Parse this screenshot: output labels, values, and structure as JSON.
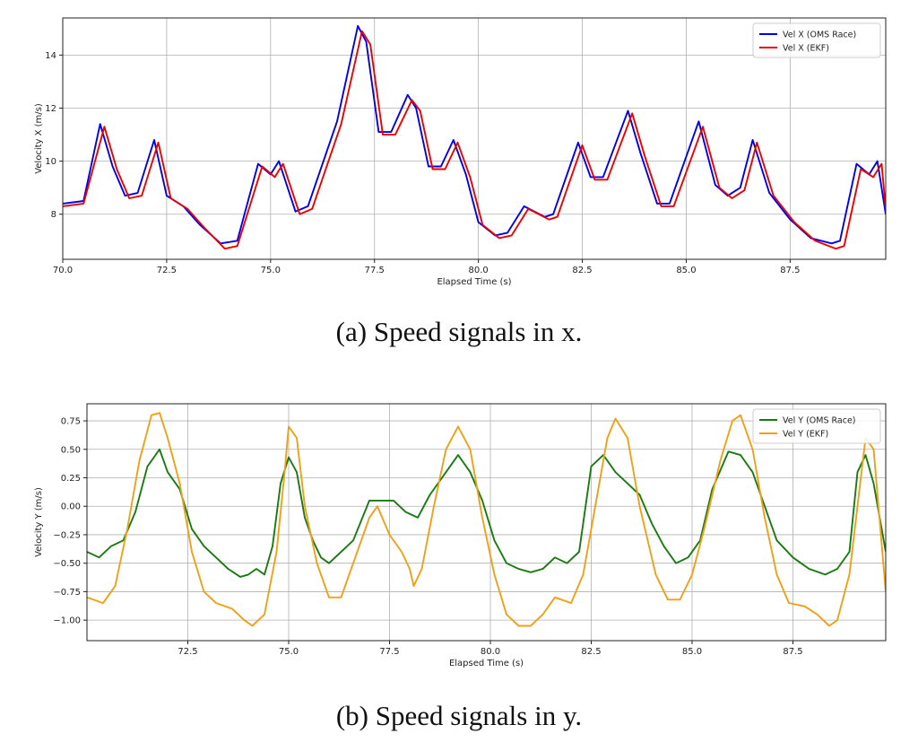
{
  "captions": {
    "a": "(a) Speed signals in x.",
    "b": "(b) Speed signals in y."
  },
  "chart_data": [
    {
      "type": "line",
      "xlabel": "Elapsed Time (s)",
      "ylabel": "Velocity X (m/s)",
      "xlim": [
        70.0,
        89.8
      ],
      "ylim": [
        6.3,
        15.4
      ],
      "xticks": [
        70.0,
        72.5,
        75.0,
        77.5,
        80.0,
        82.5,
        85.0,
        87.5
      ],
      "xtick_labels": [
        "70.0",
        "72.5",
        "75.0",
        "77.5",
        "80.0",
        "82.5",
        "85.0",
        "87.5"
      ],
      "yticks": [
        8,
        10,
        12,
        14
      ],
      "ytick_labels": [
        "8",
        "10",
        "12",
        "14"
      ],
      "grid": true,
      "legend_position": "top-right",
      "series": [
        {
          "name": "Vel X (OMS Race)",
          "color": "#0000ee",
          "points": [
            [
              70.0,
              8.4
            ],
            [
              70.5,
              8.5
            ],
            [
              70.9,
              11.4
            ],
            [
              71.2,
              9.8
            ],
            [
              71.5,
              8.7
            ],
            [
              71.8,
              8.8
            ],
            [
              72.2,
              10.8
            ],
            [
              72.5,
              8.7
            ],
            [
              72.9,
              8.3
            ],
            [
              73.3,
              7.6
            ],
            [
              73.8,
              6.9
            ],
            [
              74.2,
              7.0
            ],
            [
              74.7,
              9.9
            ],
            [
              75.0,
              9.5
            ],
            [
              75.2,
              10.0
            ],
            [
              75.6,
              8.1
            ],
            [
              75.9,
              8.3
            ],
            [
              76.6,
              11.5
            ],
            [
              77.1,
              15.1
            ],
            [
              77.3,
              14.5
            ],
            [
              77.6,
              11.1
            ],
            [
              77.9,
              11.1
            ],
            [
              78.3,
              12.5
            ],
            [
              78.5,
              12.0
            ],
            [
              78.8,
              9.8
            ],
            [
              79.1,
              9.8
            ],
            [
              79.4,
              10.8
            ],
            [
              79.7,
              9.5
            ],
            [
              80.0,
              7.7
            ],
            [
              80.4,
              7.2
            ],
            [
              80.7,
              7.3
            ],
            [
              81.1,
              8.3
            ],
            [
              81.6,
              7.9
            ],
            [
              81.8,
              8.0
            ],
            [
              82.4,
              10.7
            ],
            [
              82.7,
              9.4
            ],
            [
              83.0,
              9.4
            ],
            [
              83.6,
              11.9
            ],
            [
              83.9,
              10.3
            ],
            [
              84.3,
              8.4
            ],
            [
              84.6,
              8.4
            ],
            [
              85.3,
              11.5
            ],
            [
              85.7,
              9.1
            ],
            [
              86.0,
              8.7
            ],
            [
              86.3,
              9.0
            ],
            [
              86.6,
              10.8
            ],
            [
              87.0,
              8.8
            ],
            [
              87.5,
              7.8
            ],
            [
              88.0,
              7.1
            ],
            [
              88.5,
              6.9
            ],
            [
              88.7,
              7.0
            ],
            [
              89.1,
              9.9
            ],
            [
              89.4,
              9.5
            ],
            [
              89.6,
              10.0
            ],
            [
              89.8,
              8.0
            ]
          ]
        },
        {
          "name": "Vel X (EKF)",
          "color": "#ee0000",
          "points": [
            [
              70.0,
              8.3
            ],
            [
              70.5,
              8.4
            ],
            [
              71.0,
              11.3
            ],
            [
              71.3,
              9.7
            ],
            [
              71.6,
              8.6
            ],
            [
              71.9,
              8.7
            ],
            [
              72.3,
              10.7
            ],
            [
              72.6,
              8.6
            ],
            [
              73.0,
              8.2
            ],
            [
              73.4,
              7.5
            ],
            [
              73.9,
              6.7
            ],
            [
              74.2,
              6.8
            ],
            [
              74.8,
              9.8
            ],
            [
              75.1,
              9.4
            ],
            [
              75.3,
              9.9
            ],
            [
              75.7,
              8.0
            ],
            [
              76.0,
              8.2
            ],
            [
              76.7,
              11.4
            ],
            [
              77.2,
              14.9
            ],
            [
              77.4,
              14.4
            ],
            [
              77.7,
              11.0
            ],
            [
              78.0,
              11.0
            ],
            [
              78.4,
              12.3
            ],
            [
              78.6,
              11.9
            ],
            [
              78.9,
              9.7
            ],
            [
              79.2,
              9.7
            ],
            [
              79.5,
              10.7
            ],
            [
              79.8,
              9.4
            ],
            [
              80.1,
              7.6
            ],
            [
              80.5,
              7.1
            ],
            [
              80.8,
              7.2
            ],
            [
              81.2,
              8.2
            ],
            [
              81.7,
              7.8
            ],
            [
              81.9,
              7.9
            ],
            [
              82.5,
              10.6
            ],
            [
              82.8,
              9.3
            ],
            [
              83.1,
              9.3
            ],
            [
              83.7,
              11.8
            ],
            [
              84.0,
              10.2
            ],
            [
              84.4,
              8.3
            ],
            [
              84.7,
              8.3
            ],
            [
              85.4,
              11.3
            ],
            [
              85.8,
              9.0
            ],
            [
              86.1,
              8.6
            ],
            [
              86.4,
              8.9
            ],
            [
              86.7,
              10.7
            ],
            [
              87.1,
              8.7
            ],
            [
              87.6,
              7.7
            ],
            [
              88.1,
              7.0
            ],
            [
              88.6,
              6.7
            ],
            [
              88.8,
              6.8
            ],
            [
              89.2,
              9.7
            ],
            [
              89.5,
              9.4
            ],
            [
              89.7,
              9.9
            ],
            [
              89.8,
              8.2
            ]
          ]
        }
      ]
    },
    {
      "type": "line",
      "xlabel": "Elapsed Time (s)",
      "ylabel": "Velocity Y (m/s)",
      "xlim": [
        70.0,
        89.8
      ],
      "ylim": [
        -1.18,
        0.9
      ],
      "xticks": [
        72.5,
        75.0,
        77.5,
        80.0,
        82.5,
        85.0,
        87.5
      ],
      "xtick_labels": [
        "72.5",
        "75.0",
        "77.5",
        "80.0",
        "82.5",
        "85.0",
        "87.5"
      ],
      "yticks": [
        0.75,
        0.5,
        0.25,
        0.0,
        -0.25,
        -0.5,
        -0.75,
        -1.0
      ],
      "ytick_labels": [
        "0.75",
        "0.50",
        "0.25",
        "0.00",
        "−0.25",
        "−0.50",
        "−0.75",
        "−1.00"
      ],
      "grid": true,
      "legend_position": "top-right",
      "series": [
        {
          "name": "Vel Y (OMS Race)",
          "color": "#1a7a12",
          "points": [
            [
              70.0,
              -0.4
            ],
            [
              70.3,
              -0.45
            ],
            [
              70.6,
              -0.35
            ],
            [
              70.9,
              -0.3
            ],
            [
              71.2,
              -0.05
            ],
            [
              71.5,
              0.35
            ],
            [
              71.8,
              0.5
            ],
            [
              72.0,
              0.3
            ],
            [
              72.3,
              0.15
            ],
            [
              72.6,
              -0.2
            ],
            [
              72.9,
              -0.35
            ],
            [
              73.2,
              -0.45
            ],
            [
              73.5,
              -0.55
            ],
            [
              73.8,
              -0.62
            ],
            [
              74.0,
              -0.6
            ],
            [
              74.2,
              -0.55
            ],
            [
              74.4,
              -0.6
            ],
            [
              74.6,
              -0.35
            ],
            [
              74.8,
              0.2
            ],
            [
              75.0,
              0.43
            ],
            [
              75.2,
              0.3
            ],
            [
              75.4,
              -0.1
            ],
            [
              75.6,
              -0.3
            ],
            [
              75.8,
              -0.45
            ],
            [
              76.0,
              -0.5
            ],
            [
              76.3,
              -0.4
            ],
            [
              76.6,
              -0.3
            ],
            [
              77.0,
              0.05
            ],
            [
              77.3,
              0.05
            ],
            [
              77.6,
              0.05
            ],
            [
              77.9,
              -0.05
            ],
            [
              78.2,
              -0.1
            ],
            [
              78.5,
              0.1
            ],
            [
              78.9,
              0.3
            ],
            [
              79.2,
              0.45
            ],
            [
              79.5,
              0.3
            ],
            [
              79.8,
              0.05
            ],
            [
              80.1,
              -0.3
            ],
            [
              80.4,
              -0.5
            ],
            [
              80.7,
              -0.55
            ],
            [
              81.0,
              -0.58
            ],
            [
              81.3,
              -0.55
            ],
            [
              81.6,
              -0.45
            ],
            [
              81.9,
              -0.5
            ],
            [
              82.2,
              -0.4
            ],
            [
              82.5,
              0.35
            ],
            [
              82.8,
              0.45
            ],
            [
              83.1,
              0.3
            ],
            [
              83.4,
              0.2
            ],
            [
              83.7,
              0.1
            ],
            [
              84.0,
              -0.15
            ],
            [
              84.3,
              -0.35
            ],
            [
              84.6,
              -0.5
            ],
            [
              84.9,
              -0.45
            ],
            [
              85.2,
              -0.3
            ],
            [
              85.5,
              0.15
            ],
            [
              85.9,
              0.48
            ],
            [
              86.2,
              0.45
            ],
            [
              86.5,
              0.3
            ],
            [
              86.8,
              0.0
            ],
            [
              87.1,
              -0.3
            ],
            [
              87.5,
              -0.45
            ],
            [
              87.9,
              -0.55
            ],
            [
              88.3,
              -0.6
            ],
            [
              88.6,
              -0.55
            ],
            [
              88.9,
              -0.4
            ],
            [
              89.1,
              0.3
            ],
            [
              89.3,
              0.45
            ],
            [
              89.5,
              0.2
            ],
            [
              89.8,
              -0.4
            ]
          ]
        },
        {
          "name": "Vel Y (EKF)",
          "color": "#f0a016",
          "points": [
            [
              70.0,
              -0.8
            ],
            [
              70.4,
              -0.85
            ],
            [
              70.7,
              -0.7
            ],
            [
              71.0,
              -0.2
            ],
            [
              71.3,
              0.4
            ],
            [
              71.6,
              0.8
            ],
            [
              71.8,
              0.82
            ],
            [
              72.0,
              0.6
            ],
            [
              72.3,
              0.2
            ],
            [
              72.6,
              -0.4
            ],
            [
              72.9,
              -0.75
            ],
            [
              73.2,
              -0.85
            ],
            [
              73.6,
              -0.9
            ],
            [
              73.9,
              -1.0
            ],
            [
              74.1,
              -1.05
            ],
            [
              74.4,
              -0.95
            ],
            [
              74.7,
              -0.4
            ],
            [
              74.9,
              0.3
            ],
            [
              75.0,
              0.7
            ],
            [
              75.2,
              0.6
            ],
            [
              75.4,
              0.0
            ],
            [
              75.7,
              -0.5
            ],
            [
              76.0,
              -0.8
            ],
            [
              76.3,
              -0.8
            ],
            [
              76.6,
              -0.5
            ],
            [
              77.0,
              -0.1
            ],
            [
              77.2,
              0.0
            ],
            [
              77.5,
              -0.25
            ],
            [
              77.8,
              -0.4
            ],
            [
              78.0,
              -0.55
            ],
            [
              78.1,
              -0.7
            ],
            [
              78.3,
              -0.55
            ],
            [
              78.6,
              0.0
            ],
            [
              78.9,
              0.5
            ],
            [
              79.2,
              0.7
            ],
            [
              79.5,
              0.5
            ],
            [
              79.8,
              -0.1
            ],
            [
              80.1,
              -0.6
            ],
            [
              80.4,
              -0.95
            ],
            [
              80.7,
              -1.05
            ],
            [
              81.0,
              -1.05
            ],
            [
              81.3,
              -0.95
            ],
            [
              81.6,
              -0.8
            ],
            [
              82.0,
              -0.85
            ],
            [
              82.3,
              -0.6
            ],
            [
              82.6,
              0.0
            ],
            [
              82.9,
              0.6
            ],
            [
              83.1,
              0.77
            ],
            [
              83.4,
              0.6
            ],
            [
              83.7,
              0.0
            ],
            [
              84.1,
              -0.6
            ],
            [
              84.4,
              -0.82
            ],
            [
              84.7,
              -0.82
            ],
            [
              85.0,
              -0.6
            ],
            [
              85.3,
              -0.2
            ],
            [
              85.7,
              0.4
            ],
            [
              86.0,
              0.75
            ],
            [
              86.2,
              0.8
            ],
            [
              86.5,
              0.5
            ],
            [
              86.8,
              -0.1
            ],
            [
              87.1,
              -0.6
            ],
            [
              87.4,
              -0.85
            ],
            [
              87.8,
              -0.88
            ],
            [
              88.1,
              -0.95
            ],
            [
              88.4,
              -1.05
            ],
            [
              88.6,
              -1.0
            ],
            [
              88.9,
              -0.6
            ],
            [
              89.1,
              0.0
            ],
            [
              89.3,
              0.6
            ],
            [
              89.5,
              0.5
            ],
            [
              89.8,
              -0.75
            ]
          ]
        }
      ]
    }
  ]
}
